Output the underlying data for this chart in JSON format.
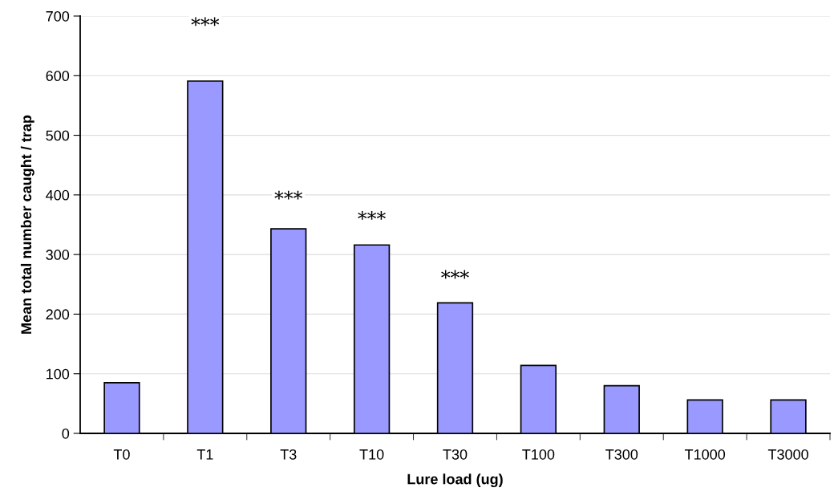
{
  "chart_data": {
    "type": "bar",
    "xlabel": "Lure load (ug)",
    "ylabel": "Mean total number caught / trap",
    "categories": [
      "T0",
      "T1",
      "T3",
      "T10",
      "T30",
      "T100",
      "T300",
      "T1000",
      "T3000"
    ],
    "values": [
      85,
      591,
      343,
      316,
      219,
      114,
      80,
      56,
      56
    ],
    "color": "#9999ff",
    "ylim": [
      0,
      700
    ],
    "yticks": [
      0,
      100,
      200,
      300,
      400,
      500,
      600,
      700
    ],
    "grid": "y",
    "annotations": [
      {
        "text": "***",
        "x": "T1",
        "y": 683
      },
      {
        "text": "***",
        "x": "T3",
        "y": 392
      },
      {
        "text": "***",
        "x": "T10",
        "y": 358
      },
      {
        "text": "***",
        "x": "T30",
        "y": 259
      }
    ]
  }
}
